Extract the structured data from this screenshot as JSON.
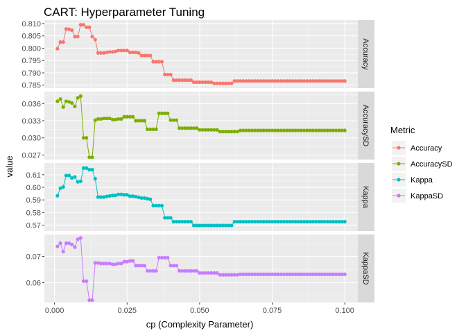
{
  "chart_data": {
    "type": "line",
    "title": "CART: Hyperparameter Tuning",
    "xlabel": "cp (Complexity Parameter)",
    "ylabel": "value",
    "xlim": [
      -0.0035,
      0.1045
    ],
    "x_ticks": [
      "0.000",
      "0.025",
      "0.050",
      "0.075",
      "0.100"
    ],
    "x_tick_values": [
      0,
      0.025,
      0.05,
      0.075,
      0.1
    ],
    "grid": true,
    "facets": "rows",
    "legend": {
      "title": "Metric",
      "position": "right"
    },
    "x": [
      0.001,
      0.002,
      0.003,
      0.004,
      0.005,
      0.006,
      0.007,
      0.008,
      0.009,
      0.01,
      0.011,
      0.012,
      0.013,
      0.014,
      0.015,
      0.016,
      0.017,
      0.018,
      0.019,
      0.02,
      0.021,
      0.022,
      0.023,
      0.024,
      0.025,
      0.026,
      0.027,
      0.028,
      0.029,
      0.03,
      0.031,
      0.032,
      0.033,
      0.034,
      0.035,
      0.036,
      0.037,
      0.038,
      0.039,
      0.04,
      0.041,
      0.042,
      0.043,
      0.044,
      0.045,
      0.046,
      0.047,
      0.048,
      0.049,
      0.05,
      0.051,
      0.052,
      0.053,
      0.054,
      0.055,
      0.056,
      0.057,
      0.058,
      0.059,
      0.06,
      0.061,
      0.062,
      0.063,
      0.064,
      0.065,
      0.066,
      0.067,
      0.068,
      0.069,
      0.07,
      0.071,
      0.072,
      0.073,
      0.074,
      0.075,
      0.076,
      0.077,
      0.078,
      0.079,
      0.08,
      0.081,
      0.082,
      0.083,
      0.084,
      0.085,
      0.086,
      0.087,
      0.088,
      0.089,
      0.09,
      0.091,
      0.092,
      0.093,
      0.094,
      0.095,
      0.096,
      0.097,
      0.098,
      0.099,
      0.1
    ],
    "series": [
      {
        "name": "Accuracy",
        "color": "#f8766d",
        "ylim": [
          0.7838,
          0.8114
        ],
        "y_ticks": [
          "0.785",
          "0.790",
          "0.795",
          "0.800",
          "0.805",
          "0.810"
        ],
        "y_tick_values": [
          0.785,
          0.79,
          0.795,
          0.8,
          0.805,
          0.81
        ],
        "values": [
          0.7998,
          0.8025,
          0.8025,
          0.8078,
          0.8077,
          0.8073,
          0.8047,
          0.8047,
          0.8095,
          0.8095,
          0.8085,
          0.8085,
          0.8047,
          0.8035,
          0.7981,
          0.7981,
          0.7981,
          0.7983,
          0.7985,
          0.7985,
          0.7987,
          0.7991,
          0.7991,
          0.7991,
          0.7991,
          0.7983,
          0.7983,
          0.7983,
          0.7981,
          0.797,
          0.797,
          0.797,
          0.797,
          0.7945,
          0.7945,
          0.7945,
          0.7945,
          0.7893,
          0.7893,
          0.7893,
          0.787,
          0.787,
          0.787,
          0.787,
          0.787,
          0.787,
          0.787,
          0.7862,
          0.7862,
          0.7862,
          0.7862,
          0.7862,
          0.7862,
          0.7862,
          0.7857,
          0.7857,
          0.7857,
          0.7857,
          0.7857,
          0.7857,
          0.7857,
          0.7867,
          0.7867,
          0.7867,
          0.7867,
          0.7867,
          0.7867,
          0.7867,
          0.7867,
          0.7867,
          0.7867,
          0.7867,
          0.7867,
          0.7867,
          0.7867,
          0.7867,
          0.7867,
          0.7867,
          0.7867,
          0.7867,
          0.7867,
          0.7867,
          0.7867,
          0.7867,
          0.7867,
          0.7867,
          0.7867,
          0.7867,
          0.7867,
          0.7867,
          0.7867,
          0.7867,
          0.7867,
          0.7867,
          0.7867,
          0.7867,
          0.7867,
          0.7867,
          0.7867,
          0.7867
        ]
      },
      {
        "name": "AccuracySD",
        "color": "#7cae00",
        "ylim": [
          0.0262,
          0.0381
        ],
        "y_ticks": [
          "0.027",
          "0.030",
          "0.033",
          "0.036"
        ],
        "y_tick_values": [
          0.027,
          0.03,
          0.033,
          0.036
        ],
        "values": [
          0.0364,
          0.0368,
          0.0354,
          0.0364,
          0.0363,
          0.0361,
          0.0355,
          0.037,
          0.0373,
          0.03,
          0.03,
          0.0266,
          0.0266,
          0.0331,
          0.0333,
          0.0333,
          0.0334,
          0.0334,
          0.0334,
          0.0332,
          0.0332,
          0.0333,
          0.0333,
          0.0337,
          0.0337,
          0.0337,
          0.0337,
          0.033,
          0.033,
          0.033,
          0.033,
          0.0315,
          0.0315,
          0.0315,
          0.0315,
          0.0343,
          0.0343,
          0.0343,
          0.0343,
          0.0331,
          0.0331,
          0.0331,
          0.0317,
          0.0317,
          0.0317,
          0.0317,
          0.0317,
          0.0317,
          0.0317,
          0.0314,
          0.0314,
          0.0314,
          0.0314,
          0.0314,
          0.0314,
          0.0314,
          0.0311,
          0.0311,
          0.0311,
          0.0311,
          0.0311,
          0.0311,
          0.0311,
          0.0313,
          0.0313,
          0.0313,
          0.0313,
          0.0313,
          0.0313,
          0.0313,
          0.0313,
          0.0313,
          0.0313,
          0.0313,
          0.0313,
          0.0313,
          0.0313,
          0.0313,
          0.0313,
          0.0313,
          0.0313,
          0.0313,
          0.0313,
          0.0313,
          0.0313,
          0.0313,
          0.0313,
          0.0313,
          0.0313,
          0.0313,
          0.0313,
          0.0313,
          0.0313,
          0.0313,
          0.0313,
          0.0313,
          0.0313,
          0.0313,
          0.0313,
          0.0313
        ]
      },
      {
        "name": "Kappa",
        "color": "#00bfc4",
        "ylim": [
          0.5653,
          0.6193
        ],
        "y_ticks": [
          "0.57",
          "0.58",
          "0.59",
          "0.60",
          "0.61"
        ],
        "y_tick_values": [
          0.57,
          0.58,
          0.59,
          0.6,
          0.61
        ],
        "values": [
          0.5933,
          0.5993,
          0.6003,
          0.6094,
          0.6094,
          0.6074,
          0.6083,
          0.6043,
          0.6048,
          0.6153,
          0.6153,
          0.614,
          0.614,
          0.6069,
          0.5923,
          0.5923,
          0.5923,
          0.5928,
          0.5932,
          0.5936,
          0.5936,
          0.5944,
          0.5944,
          0.5941,
          0.5941,
          0.593,
          0.593,
          0.5926,
          0.5921,
          0.5915,
          0.5915,
          0.591,
          0.5905,
          0.5855,
          0.5855,
          0.5855,
          0.5855,
          0.5758,
          0.5758,
          0.5758,
          0.5727,
          0.5727,
          0.5727,
          0.5727,
          0.5727,
          0.5727,
          0.5727,
          0.5697,
          0.5697,
          0.5697,
          0.5697,
          0.5697,
          0.5697,
          0.5697,
          0.5697,
          0.5697,
          0.5697,
          0.5697,
          0.5697,
          0.5697,
          0.5697,
          0.5727,
          0.5727,
          0.5727,
          0.5727,
          0.5727,
          0.5727,
          0.5727,
          0.5727,
          0.5727,
          0.5727,
          0.5727,
          0.5727,
          0.5727,
          0.5727,
          0.5727,
          0.5727,
          0.5727,
          0.5727,
          0.5727,
          0.5727,
          0.5727,
          0.5727,
          0.5727,
          0.5727,
          0.5727,
          0.5727,
          0.5727,
          0.5727,
          0.5727,
          0.5727,
          0.5727,
          0.5727,
          0.5727,
          0.5727,
          0.5727,
          0.5727,
          0.5727,
          0.5727,
          0.5727
        ]
      },
      {
        "name": "KappaSD",
        "color": "#c77cff",
        "ylim": [
          0.0525,
          0.0783
        ],
        "y_ticks": [
          "0.06",
          "0.07"
        ],
        "y_tick_values": [
          0.06,
          0.07
        ],
        "values": [
          0.0738,
          0.075,
          0.0718,
          0.075,
          0.075,
          0.0745,
          0.0735,
          0.0765,
          0.077,
          0.0606,
          0.0606,
          0.0534,
          0.0534,
          0.0675,
          0.0675,
          0.0673,
          0.0673,
          0.0673,
          0.0673,
          0.067,
          0.067,
          0.0673,
          0.0673,
          0.068,
          0.068,
          0.0683,
          0.0683,
          0.0665,
          0.0665,
          0.0665,
          0.0665,
          0.0645,
          0.0645,
          0.0645,
          0.0645,
          0.0695,
          0.0695,
          0.0695,
          0.0695,
          0.0665,
          0.0665,
          0.0665,
          0.0645,
          0.0645,
          0.0645,
          0.0645,
          0.0645,
          0.0645,
          0.0645,
          0.0637,
          0.0637,
          0.0637,
          0.0637,
          0.0637,
          0.0637,
          0.0637,
          0.063,
          0.063,
          0.063,
          0.063,
          0.063,
          0.063,
          0.063,
          0.0632,
          0.0632,
          0.0632,
          0.0632,
          0.0632,
          0.0632,
          0.0632,
          0.0632,
          0.0632,
          0.0632,
          0.0632,
          0.0632,
          0.0632,
          0.0632,
          0.0632,
          0.0632,
          0.0632,
          0.0632,
          0.0632,
          0.0632,
          0.0632,
          0.0632,
          0.0632,
          0.0632,
          0.0632,
          0.0632,
          0.0632,
          0.0632,
          0.0632,
          0.0632,
          0.0632,
          0.0632,
          0.0632,
          0.0632,
          0.0632,
          0.0632,
          0.0632
        ]
      }
    ]
  }
}
